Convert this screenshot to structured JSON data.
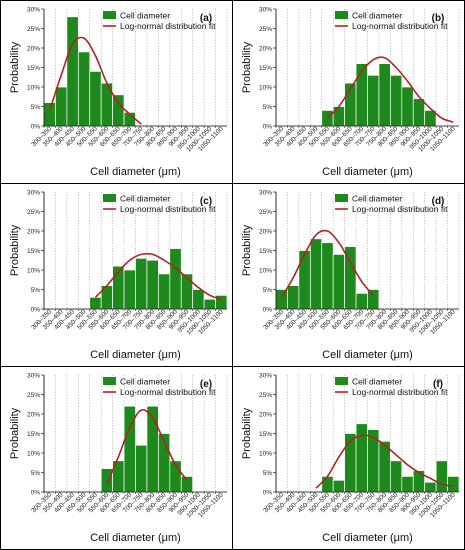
{
  "figure": {
    "background": "#ffffff",
    "border_color": "#000000",
    "bar_color": "#1e8a1e",
    "bar_edge_color": "#ffffff",
    "fit_color": "#b22222",
    "grid_color": "#9a9a9a"
  },
  "chart_data": [
    {
      "type": "bar",
      "panel_label": "(a)",
      "categories": [
        "300–350",
        "350–400",
        "400–450",
        "450–500",
        "500–550",
        "550–600",
        "600–650",
        "650–700",
        "700–750",
        "750–800",
        "800–850",
        "850–900",
        "900–950",
        "950–1000",
        "1000–1050",
        "1050–1100"
      ],
      "series": [
        {
          "name": "Cell diameter",
          "type": "bar",
          "values": [
            6,
            10,
            28,
            19,
            14,
            11,
            8,
            3.5,
            0,
            0,
            0,
            0,
            0,
            0,
            0,
            0
          ]
        },
        {
          "name": "Log-normal distribution fit",
          "type": "line",
          "values": [
            4,
            13,
            21,
            22.5,
            18,
            11,
            6,
            3,
            0.5,
            null,
            null,
            null,
            null,
            null,
            null,
            null
          ]
        }
      ],
      "xlabel": "Cell diameter (μm)",
      "ylabel": "Probability",
      "ylim": [
        0,
        30
      ],
      "yticks": [
        "0%",
        "5%",
        "10%",
        "15%",
        "20%",
        "25%",
        "30%"
      ],
      "grid": "vertical dotted",
      "legend_position": "top-right"
    },
    {
      "type": "bar",
      "panel_label": "(b)",
      "categories": [
        "300–350",
        "350–400",
        "400–450",
        "450–500",
        "500–550",
        "550–600",
        "600–650",
        "650–700",
        "700–750",
        "750–800",
        "800–850",
        "850–900",
        "900–950",
        "950–1000",
        "1000–1050",
        "1050–1100"
      ],
      "series": [
        {
          "name": "Cell diameter",
          "type": "bar",
          "values": [
            0,
            0,
            0,
            0,
            4,
            5,
            11,
            16,
            13,
            16,
            13,
            10,
            7,
            4,
            0,
            0
          ]
        },
        {
          "name": "Log-normal distribution fit",
          "type": "line",
          "values": [
            null,
            null,
            null,
            null,
            2,
            5,
            9.5,
            14,
            17,
            17.5,
            15,
            11.5,
            7.5,
            4.5,
            2,
            1
          ]
        }
      ],
      "xlabel": "Cell diameter (μm)",
      "ylabel": "Probability",
      "ylim": [
        0,
        30
      ],
      "yticks": [
        "0%",
        "5%",
        "10%",
        "15%",
        "20%",
        "25%",
        "30%"
      ],
      "grid": "vertical dotted",
      "legend_position": "top-right"
    },
    {
      "type": "bar",
      "panel_label": "(c)",
      "categories": [
        "300–350",
        "350–400",
        "400–450",
        "450–500",
        "500–550",
        "550–600",
        "600–650",
        "650–700",
        "700–750",
        "750–800",
        "800–850",
        "850–900",
        "900–950",
        "950–1000",
        "1000–1050",
        "1050–1100"
      ],
      "series": [
        {
          "name": "Cell diameter",
          "type": "bar",
          "values": [
            0,
            0,
            0,
            0,
            3,
            6,
            11,
            10,
            13,
            12.5,
            9,
            15.5,
            9,
            5,
            2.5,
            3.5
          ]
        },
        {
          "name": "Log-normal distribution fit",
          "type": "line",
          "values": [
            null,
            null,
            null,
            null,
            3,
            6,
            9.5,
            12.5,
            14,
            14,
            12.5,
            10.5,
            8,
            5.5,
            3.5,
            2.5
          ]
        }
      ],
      "xlabel": "Cell diameter (μm)",
      "ylabel": "Probability",
      "ylim": [
        0,
        30
      ],
      "yticks": [
        "0%",
        "5%",
        "10%",
        "15%",
        "20%",
        "25%",
        "30%"
      ],
      "grid": "vertical dotted",
      "legend_position": "top-right"
    },
    {
      "type": "bar",
      "panel_label": "(d)",
      "categories": [
        "300–350",
        "350–400",
        "400–450",
        "450–500",
        "500–550",
        "550–600",
        "600–650",
        "650–700",
        "700–750",
        "750–800",
        "800–850",
        "850–900",
        "900–950",
        "950–1000",
        "1000–1050",
        "1050–1100"
      ],
      "series": [
        {
          "name": "Cell diameter",
          "type": "bar",
          "values": [
            5,
            6,
            15,
            18,
            17,
            14,
            16,
            4,
            5,
            0,
            0,
            0,
            0,
            0,
            0,
            0
          ]
        },
        {
          "name": "Log-normal distribution fit",
          "type": "line",
          "values": [
            3,
            8,
            14,
            19,
            20,
            17,
            12,
            7,
            3.5,
            null,
            null,
            null,
            null,
            null,
            null,
            null
          ]
        }
      ],
      "xlabel": "Cell diameter (μm)",
      "ylabel": "Probability",
      "ylim": [
        0,
        30
      ],
      "yticks": [
        "0%",
        "5%",
        "10%",
        "15%",
        "20%",
        "25%",
        "30%"
      ],
      "grid": "vertical dotted",
      "legend_position": "top-right"
    },
    {
      "type": "bar",
      "panel_label": "(e)",
      "categories": [
        "300–350",
        "350–400",
        "400–450",
        "450–500",
        "500–550",
        "550–600",
        "600–650",
        "650–700",
        "700–750",
        "750–800",
        "800–850",
        "850–900",
        "900–950",
        "950–1000",
        "1000–1050",
        "1050–1100"
      ],
      "series": [
        {
          "name": "Cell diameter",
          "type": "bar",
          "values": [
            0,
            0,
            0,
            0,
            0,
            6,
            8,
            22,
            12,
            22,
            15,
            8,
            4,
            0,
            0,
            0
          ]
        },
        {
          "name": "Log-normal distribution fit",
          "type": "line",
          "values": [
            null,
            null,
            null,
            null,
            null,
            2,
            9,
            16.5,
            21,
            19,
            13,
            7,
            3,
            null,
            null,
            null
          ]
        }
      ],
      "xlabel": "Cell diameter (μm)",
      "ylabel": "Probability",
      "ylim": [
        0,
        30
      ],
      "yticks": [
        "0%",
        "5%",
        "10%",
        "15%",
        "20%",
        "25%",
        "30%"
      ],
      "grid": "vertical dotted",
      "legend_position": "top-right"
    },
    {
      "type": "bar",
      "panel_label": "(f)",
      "categories": [
        "300–350",
        "350–400",
        "400–450",
        "450–500",
        "500–550",
        "550–600",
        "600–650",
        "650–700",
        "700–750",
        "750–800",
        "800–850",
        "850–900",
        "900–950",
        "950–1000",
        "1000–1050",
        "1050–1100"
      ],
      "series": [
        {
          "name": "Cell diameter",
          "type": "bar",
          "values": [
            0,
            0,
            0,
            0,
            4,
            3,
            15,
            17.5,
            16,
            13,
            8,
            4,
            5.5,
            2.5,
            8,
            4
          ]
        },
        {
          "name": "Log-normal distribution fit",
          "type": "line",
          "values": [
            null,
            null,
            null,
            1,
            4,
            9,
            13,
            14.5,
            14,
            12,
            9.5,
            7,
            5,
            3.5,
            2,
            1.5
          ]
        }
      ],
      "xlabel": "Cell diameter (μm)",
      "ylabel": "Probability",
      "ylim": [
        0,
        30
      ],
      "yticks": [
        "0%",
        "5%",
        "10%",
        "15%",
        "20%",
        "25%",
        "30%"
      ],
      "grid": "vertical dotted",
      "legend_position": "top-right"
    }
  ]
}
